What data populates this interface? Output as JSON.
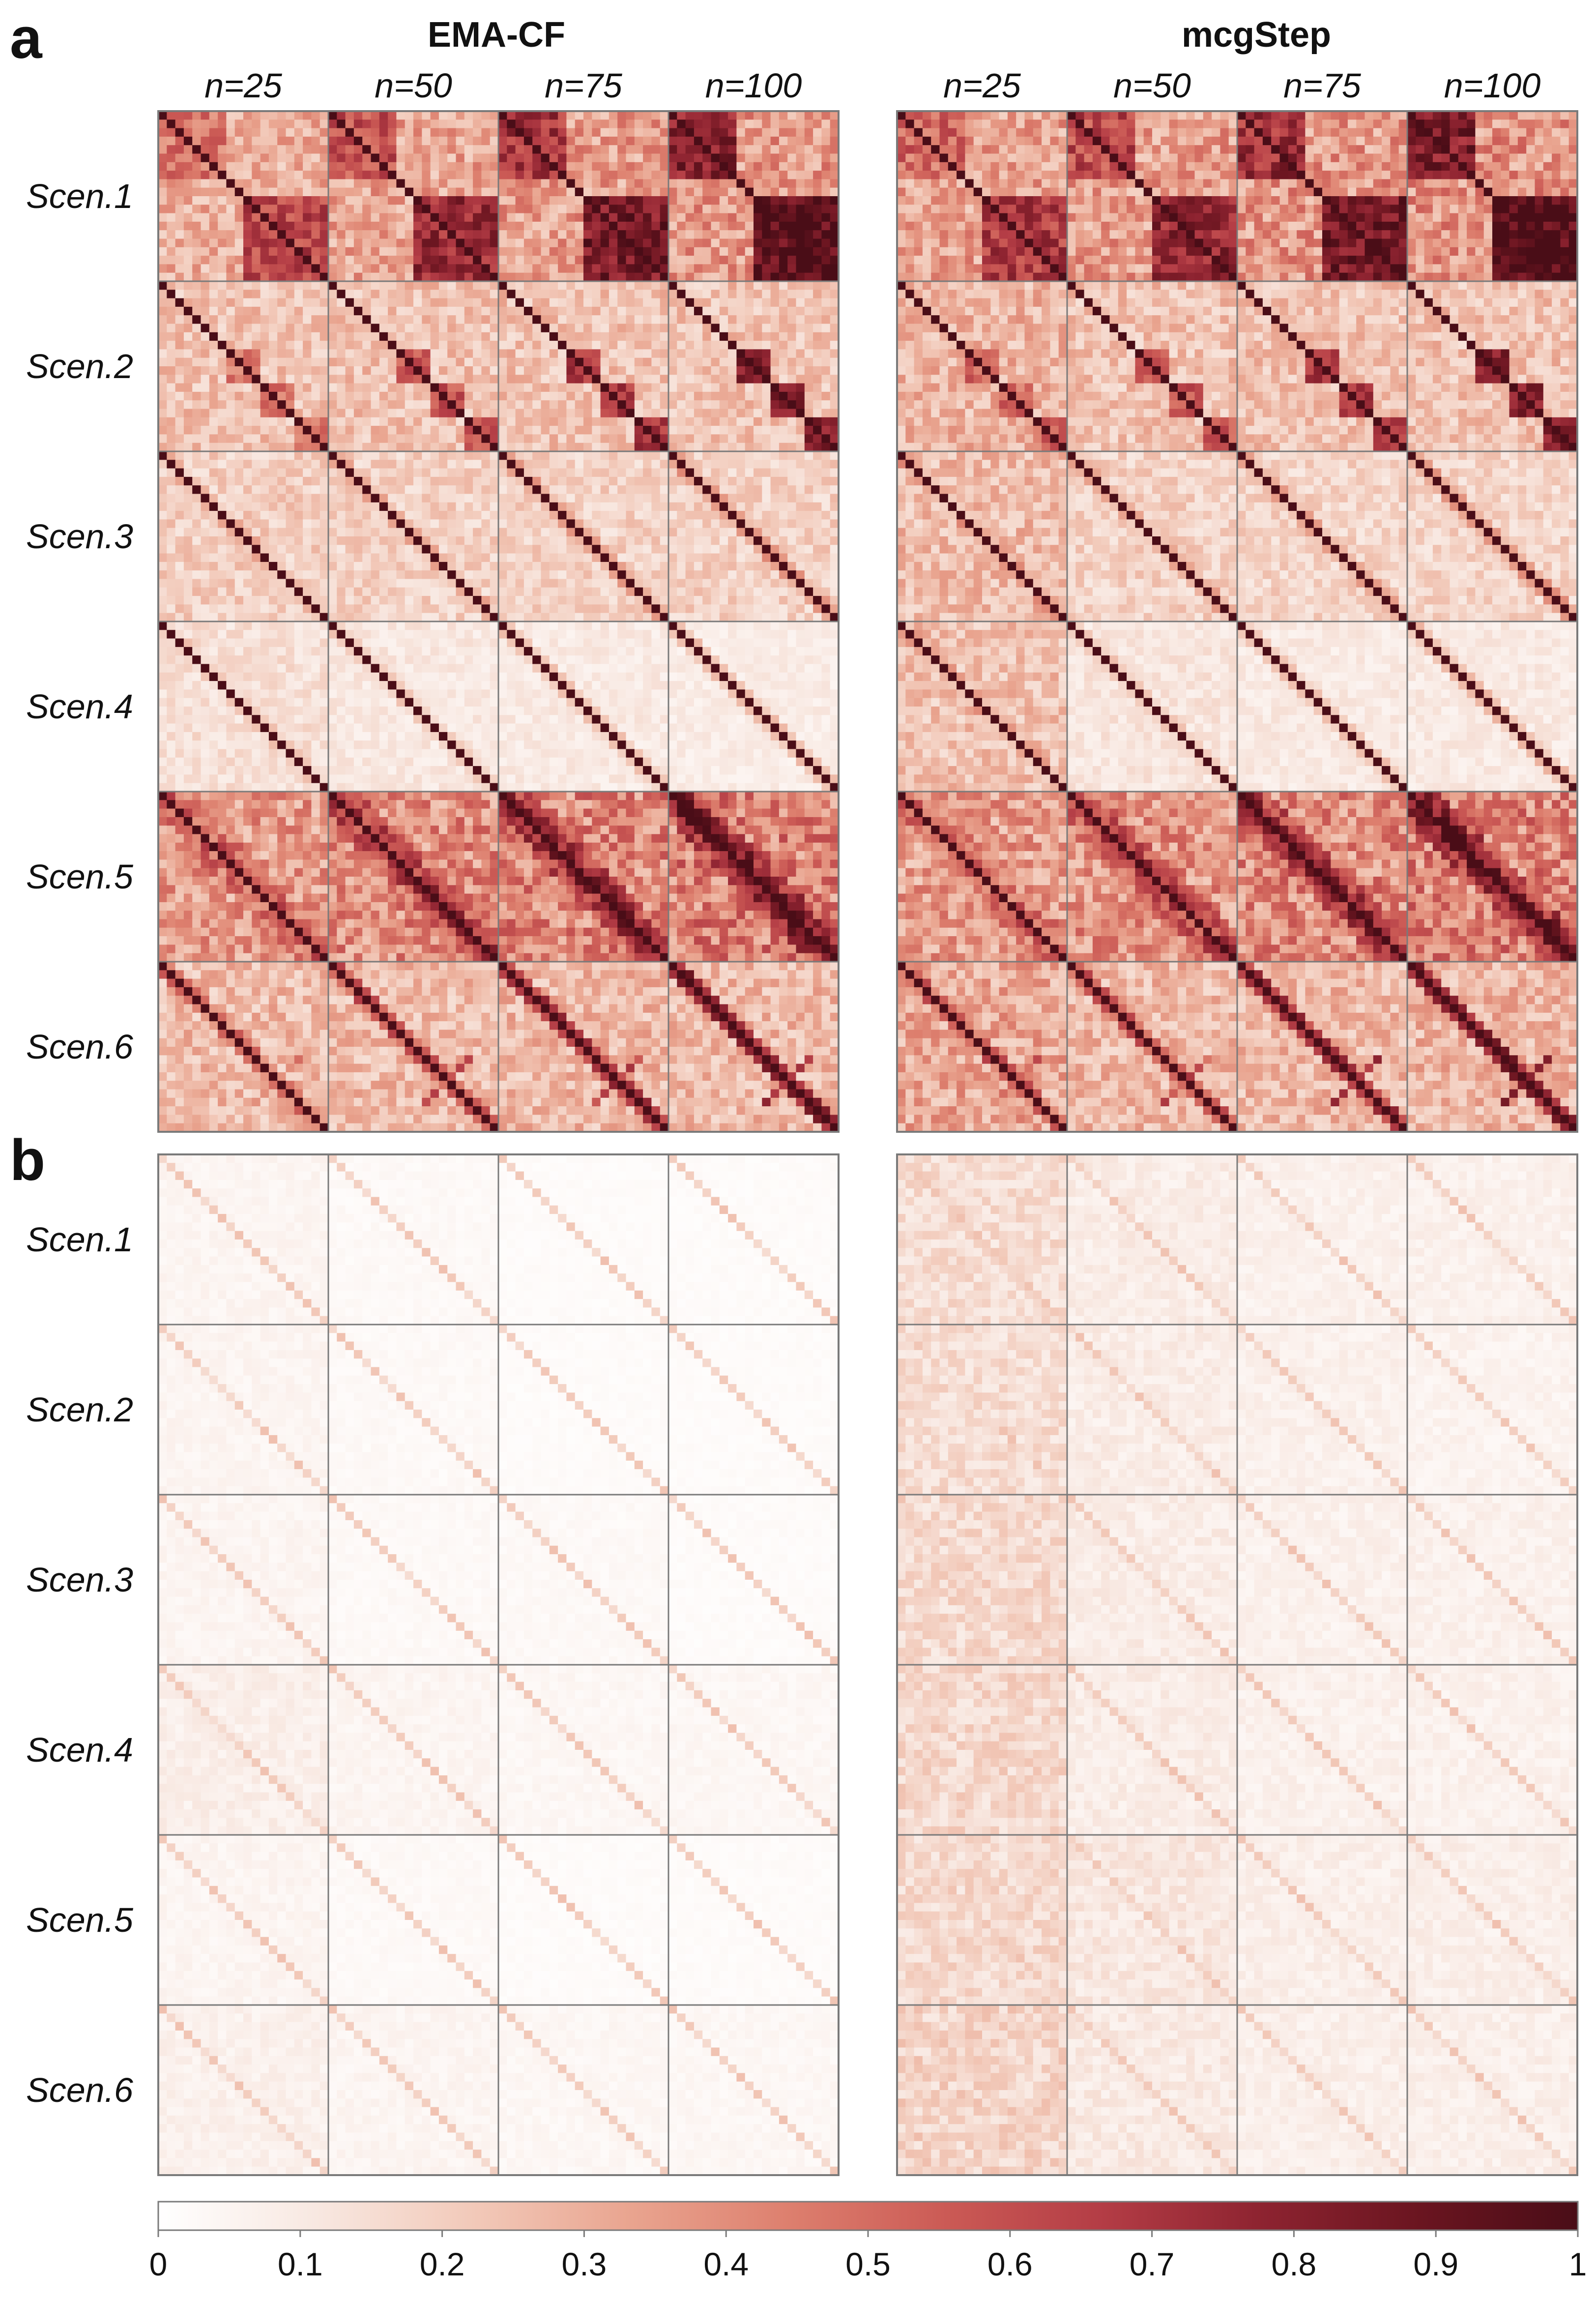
{
  "chart_data": {
    "type": "heatmap",
    "title": "",
    "panels": [
      {
        "letter": "a",
        "row_labels": [
          "Scen.1",
          "Scen.2",
          "Scen.3",
          "Scen.4",
          "Scen.5",
          "Scen.6"
        ]
      },
      {
        "letter": "b",
        "row_labels": [
          "Scen.1",
          "Scen.2",
          "Scen.3",
          "Scen.4",
          "Scen.5",
          "Scen.6"
        ]
      }
    ],
    "methods": [
      "EMA-CF",
      "mcgStep"
    ],
    "sample_sizes": [
      "n=25",
      "n=50",
      "n=75",
      "n=100"
    ],
    "matrix_size": 20,
    "value_range": [
      0,
      1
    ],
    "colorbar": {
      "ticks": [
        "0",
        "0.1",
        "0.2",
        "0.3",
        "0.4",
        "0.5",
        "0.6",
        "0.7",
        "0.8",
        "0.9",
        "1"
      ],
      "colors": [
        "#ffffff",
        "#f8e8e1",
        "#f2c9b9",
        "#e9a48f",
        "#dd7f6e",
        "#cb5a55",
        "#b33c45",
        "#8d2330",
        "#6a1520",
        "#4a0d17"
      ]
    },
    "approx_mean_off_diagonal": {
      "a": {
        "EMA-CF": [
          [
            0.3,
            0.33,
            0.35,
            0.36
          ],
          [
            0.24,
            0.24,
            0.24,
            0.24
          ],
          [
            0.2,
            0.19,
            0.19,
            0.19
          ],
          [
            0.14,
            0.11,
            0.1,
            0.09
          ],
          [
            0.36,
            0.4,
            0.42,
            0.44
          ],
          [
            0.26,
            0.26,
            0.27,
            0.27
          ]
        ],
        "mcgStep": [
          [
            0.34,
            0.35,
            0.37,
            0.38
          ],
          [
            0.28,
            0.24,
            0.24,
            0.24
          ],
          [
            0.26,
            0.19,
            0.18,
            0.18
          ],
          [
            0.24,
            0.12,
            0.1,
            0.1
          ],
          [
            0.35,
            0.38,
            0.41,
            0.43
          ],
          [
            0.32,
            0.27,
            0.27,
            0.28
          ]
        ]
      },
      "b": {
        "EMA-CF": [
          [
            0.05,
            0.03,
            0.02,
            0.02
          ],
          [
            0.05,
            0.03,
            0.02,
            0.02
          ],
          [
            0.05,
            0.03,
            0.03,
            0.02
          ],
          [
            0.08,
            0.05,
            0.04,
            0.04
          ],
          [
            0.05,
            0.03,
            0.02,
            0.02
          ],
          [
            0.07,
            0.05,
            0.04,
            0.04
          ]
        ],
        "mcgStep": [
          [
            0.15,
            0.09,
            0.07,
            0.07
          ],
          [
            0.15,
            0.09,
            0.07,
            0.06
          ],
          [
            0.16,
            0.09,
            0.07,
            0.07
          ],
          [
            0.17,
            0.09,
            0.07,
            0.07
          ],
          [
            0.16,
            0.11,
            0.08,
            0.08
          ],
          [
            0.18,
            0.1,
            0.08,
            0.08
          ]
        ]
      }
    }
  }
}
